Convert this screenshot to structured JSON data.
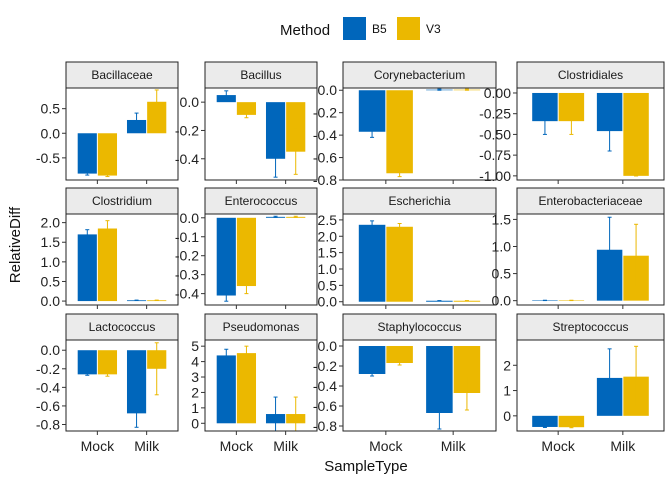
{
  "chart_data": {
    "type": "bar",
    "xlabel": "SampleType",
    "ylabel": "RelativeDiff",
    "categories": [
      "Mock",
      "Milk"
    ],
    "legend": {
      "title": "Method",
      "position": "top",
      "entries": [
        {
          "name": "B5",
          "color": "#0066BB"
        },
        {
          "name": "V3",
          "color": "#EBB800"
        }
      ]
    },
    "grid": false,
    "panels": [
      {
        "title": "Bacillaceae",
        "ylim": [
          -0.95,
          0.92
        ],
        "yticks": [
          -0.5,
          0.0,
          0.5
        ],
        "ytick_labels": [
          "-0.5",
          "0.0",
          "0.5"
        ],
        "series": [
          {
            "name": "B5",
            "values": [
              -0.82,
              0.27
            ],
            "err": [
              0.03,
              0.14
            ]
          },
          {
            "name": "V3",
            "values": [
              -0.86,
              0.64
            ],
            "err": [
              0.02,
              0.24
            ]
          }
        ]
      },
      {
        "title": "Bacillus",
        "ylim": [
          -0.55,
          0.1
        ],
        "yticks": [
          0.0,
          -0.2,
          -0.4
        ],
        "ytick_labels": [
          "0.0",
          "-0.2",
          "-0.4"
        ],
        "series": [
          {
            "name": "B5",
            "values": [
              0.05,
              -0.4
            ],
            "err": [
              0.03,
              0.13
            ]
          },
          {
            "name": "V3",
            "values": [
              -0.09,
              -0.35
            ],
            "err": [
              0.02,
              0.16
            ]
          }
        ]
      },
      {
        "title": "Corynebacterium",
        "ylim": [
          -0.8,
          0.02
        ],
        "yticks": [
          0.0,
          -0.2,
          -0.4,
          -0.6,
          -0.8
        ],
        "ytick_labels": [
          "0.0",
          "-0.2",
          "-0.4",
          "-0.6",
          "-0.8"
        ],
        "series": [
          {
            "name": "B5",
            "values": [
              -0.37,
              0.005
            ],
            "err": [
              0.05,
              0.005
            ]
          },
          {
            "name": "V3",
            "values": [
              -0.74,
              0.005
            ],
            "err": [
              0.03,
              0.005
            ]
          }
        ]
      },
      {
        "title": "Clostridiales",
        "ylim": [
          -1.05,
          0.06
        ],
        "yticks": [
          0.0,
          -0.25,
          -0.5,
          -0.75,
          -1.0
        ],
        "ytick_labels": [
          "0.00",
          "-0.25",
          "-0.50",
          "-0.75",
          "-1.00"
        ],
        "series": [
          {
            "name": "B5",
            "values": [
              -0.34,
              -0.46
            ],
            "err": [
              0.16,
              0.24
            ]
          },
          {
            "name": "V3",
            "values": [
              -0.34,
              -1.0
            ],
            "err": [
              0.16,
              0.0
            ]
          }
        ]
      },
      {
        "title": "Clostridium",
        "ylim": [
          -0.1,
          2.22
        ],
        "yticks": [
          0.0,
          0.5,
          1.0,
          1.5,
          2.0
        ],
        "ytick_labels": [
          "0.0",
          "0.5",
          "1.0",
          "1.5",
          "2.0"
        ],
        "series": [
          {
            "name": "B5",
            "values": [
              1.7,
              0.02
            ],
            "err": [
              0.12,
              0.005
            ]
          },
          {
            "name": "V3",
            "values": [
              1.85,
              0.02
            ],
            "err": [
              0.2,
              0.005
            ]
          }
        ]
      },
      {
        "title": "Enterococcus",
        "ylim": [
          -0.46,
          0.02
        ],
        "yticks": [
          0.0,
          -0.1,
          -0.2,
          -0.3,
          -0.4
        ],
        "ytick_labels": [
          "0.0",
          "-0.1",
          "-0.2",
          "-0.3",
          "-0.4"
        ],
        "series": [
          {
            "name": "B5",
            "values": [
              -0.41,
              0.005
            ],
            "err": [
              0.03,
              0.003
            ]
          },
          {
            "name": "V3",
            "values": [
              -0.36,
              0.005
            ],
            "err": [
              0.04,
              0.003
            ]
          }
        ]
      },
      {
        "title": "Escherichia",
        "ylim": [
          -0.1,
          2.68
        ],
        "yticks": [
          0.0,
          0.5,
          1.0,
          1.5,
          2.0,
          2.5
        ],
        "ytick_labels": [
          "0.0",
          "0.5",
          "1.0",
          "1.5",
          "2.0",
          "2.5"
        ],
        "series": [
          {
            "name": "B5",
            "values": [
              2.35,
              0.03
            ],
            "err": [
              0.12,
              0.005
            ]
          },
          {
            "name": "V3",
            "values": [
              2.29,
              0.03
            ],
            "err": [
              0.1,
              0.005
            ]
          }
        ]
      },
      {
        "title": "Enterobacteriaceae",
        "ylim": [
          -0.08,
          1.6
        ],
        "yticks": [
          0.0,
          0.5,
          1.0,
          1.5
        ],
        "ytick_labels": [
          "0.0",
          "0.5",
          "1.0",
          "1.5"
        ],
        "series": [
          {
            "name": "B5",
            "values": [
              0.005,
              0.94
            ],
            "err": [
              0.003,
              0.6
            ]
          },
          {
            "name": "V3",
            "values": [
              0.005,
              0.83
            ],
            "err": [
              0.003,
              0.58
            ]
          }
        ]
      },
      {
        "title": "Lactococcus",
        "ylim": [
          -0.87,
          0.11
        ],
        "yticks": [
          0.0,
          -0.2,
          -0.4,
          -0.6,
          -0.8
        ],
        "ytick_labels": [
          "0.0",
          "-0.2",
          "-0.4",
          "-0.6",
          "-0.8"
        ],
        "series": [
          {
            "name": "B5",
            "values": [
              -0.26,
              -0.68
            ],
            "err": [
              0.01,
              0.15
            ]
          },
          {
            "name": "V3",
            "values": [
              -0.26,
              -0.2
            ],
            "err": [
              0.02,
              0.28
            ]
          }
        ]
      },
      {
        "title": "Pseudomonas",
        "ylim": [
          -0.5,
          5.4
        ],
        "yticks": [
          0,
          1,
          2,
          3,
          4,
          5
        ],
        "ytick_labels": [
          "0",
          "1",
          "2",
          "3",
          "4",
          "5"
        ],
        "series": [
          {
            "name": "B5",
            "values": [
              4.4,
              0.6
            ],
            "err": [
              0.4,
              1.1
            ]
          },
          {
            "name": "V3",
            "values": [
              4.55,
              0.6
            ],
            "err": [
              0.45,
              1.1
            ]
          }
        ]
      },
      {
        "title": "Staphylococcus",
        "ylim": [
          -0.85,
          0.06
        ],
        "yticks": [
          0.0,
          -0.2,
          -0.4,
          -0.6,
          -0.8
        ],
        "ytick_labels": [
          "0.0",
          "-0.2",
          "-0.4",
          "-0.6",
          "-0.8"
        ],
        "series": [
          {
            "name": "B5",
            "values": [
              -0.28,
              -0.67
            ],
            "err": [
              0.02,
              0.16
            ]
          },
          {
            "name": "V3",
            "values": [
              -0.17,
              -0.47
            ],
            "err": [
              0.02,
              0.17
            ]
          }
        ]
      },
      {
        "title": "Streptococcus",
        "ylim": [
          -0.6,
          3.0
        ],
        "yticks": [
          0,
          1,
          2
        ],
        "ytick_labels": [
          "0",
          "1",
          "2"
        ],
        "series": [
          {
            "name": "B5",
            "values": [
              -0.44,
              1.5
            ],
            "err": [
              0.02,
              1.15
            ]
          },
          {
            "name": "V3",
            "values": [
              -0.45,
              1.55
            ],
            "err": [
              0.02,
              1.2
            ]
          }
        ]
      }
    ]
  }
}
